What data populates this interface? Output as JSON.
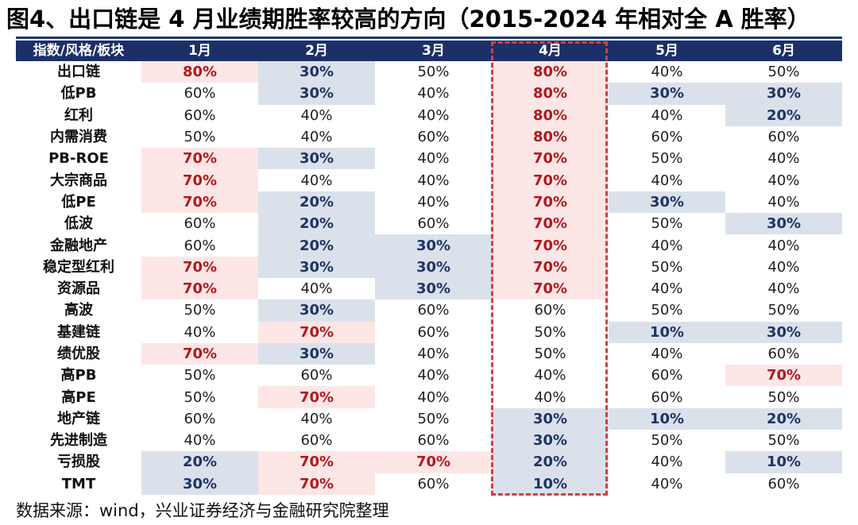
{
  "title": "图4、出口链是 4 月业绩期胜率较高的方向（2015-2024 年相对全 A 胜率）",
  "table": {
    "headers": [
      "指数/风格/板块",
      "1月",
      "2月",
      "3月",
      "4月",
      "5月",
      "6月"
    ],
    "rows": [
      {
        "label": "出口链",
        "values": [
          "80%",
          "30%",
          "50%",
          "80%",
          "40%",
          "50%"
        ]
      },
      {
        "label": "低PB",
        "values": [
          "60%",
          "30%",
          "40%",
          "80%",
          "30%",
          "30%"
        ]
      },
      {
        "label": "红利",
        "values": [
          "60%",
          "40%",
          "40%",
          "80%",
          "40%",
          "20%"
        ]
      },
      {
        "label": "内需消费",
        "values": [
          "50%",
          "40%",
          "60%",
          "80%",
          "60%",
          "60%"
        ]
      },
      {
        "label": "PB-ROE",
        "values": [
          "70%",
          "30%",
          "40%",
          "70%",
          "50%",
          "40%"
        ]
      },
      {
        "label": "大宗商品",
        "values": [
          "70%",
          "40%",
          "40%",
          "70%",
          "40%",
          "40%"
        ]
      },
      {
        "label": "低PE",
        "values": [
          "70%",
          "20%",
          "40%",
          "70%",
          "30%",
          "40%"
        ]
      },
      {
        "label": "低波",
        "values": [
          "60%",
          "20%",
          "60%",
          "70%",
          "50%",
          "30%"
        ]
      },
      {
        "label": "金融地产",
        "values": [
          "60%",
          "20%",
          "30%",
          "70%",
          "40%",
          "40%"
        ]
      },
      {
        "label": "稳定型红利",
        "values": [
          "70%",
          "30%",
          "30%",
          "70%",
          "50%",
          "40%"
        ]
      },
      {
        "label": "资源品",
        "values": [
          "70%",
          "40%",
          "30%",
          "70%",
          "40%",
          "40%"
        ]
      },
      {
        "label": "高波",
        "values": [
          "50%",
          "30%",
          "60%",
          "60%",
          "50%",
          "50%"
        ]
      },
      {
        "label": "基建链",
        "values": [
          "40%",
          "70%",
          "60%",
          "50%",
          "10%",
          "30%"
        ]
      },
      {
        "label": "绩优股",
        "values": [
          "70%",
          "30%",
          "40%",
          "50%",
          "40%",
          "60%"
        ]
      },
      {
        "label": "高PB",
        "values": [
          "50%",
          "60%",
          "40%",
          "40%",
          "60%",
          "70%"
        ]
      },
      {
        "label": "高PE",
        "values": [
          "50%",
          "70%",
          "40%",
          "40%",
          "60%",
          "50%"
        ]
      },
      {
        "label": "地产链",
        "values": [
          "60%",
          "40%",
          "50%",
          "30%",
          "10%",
          "20%"
        ]
      },
      {
        "label": "先进制造",
        "values": [
          "40%",
          "60%",
          "60%",
          "30%",
          "50%",
          "50%"
        ]
      },
      {
        "label": "亏损股",
        "values": [
          "20%",
          "70%",
          "70%",
          "20%",
          "40%",
          "10%"
        ]
      },
      {
        "label": "TMT",
        "values": [
          "30%",
          "70%",
          "60%",
          "10%",
          "40%",
          "60%"
        ]
      }
    ]
  },
  "colors": {
    "header_bg": "#1c2f67",
    "high_bg": "#fce6e6",
    "high_text": "#b0191e",
    "low_bg": "#dbe1ea",
    "low_text": "#1e3466",
    "highlight_box": "#d83c3c"
  },
  "source": "数据来源：wind，兴业证券经济与金融研究院整理"
}
